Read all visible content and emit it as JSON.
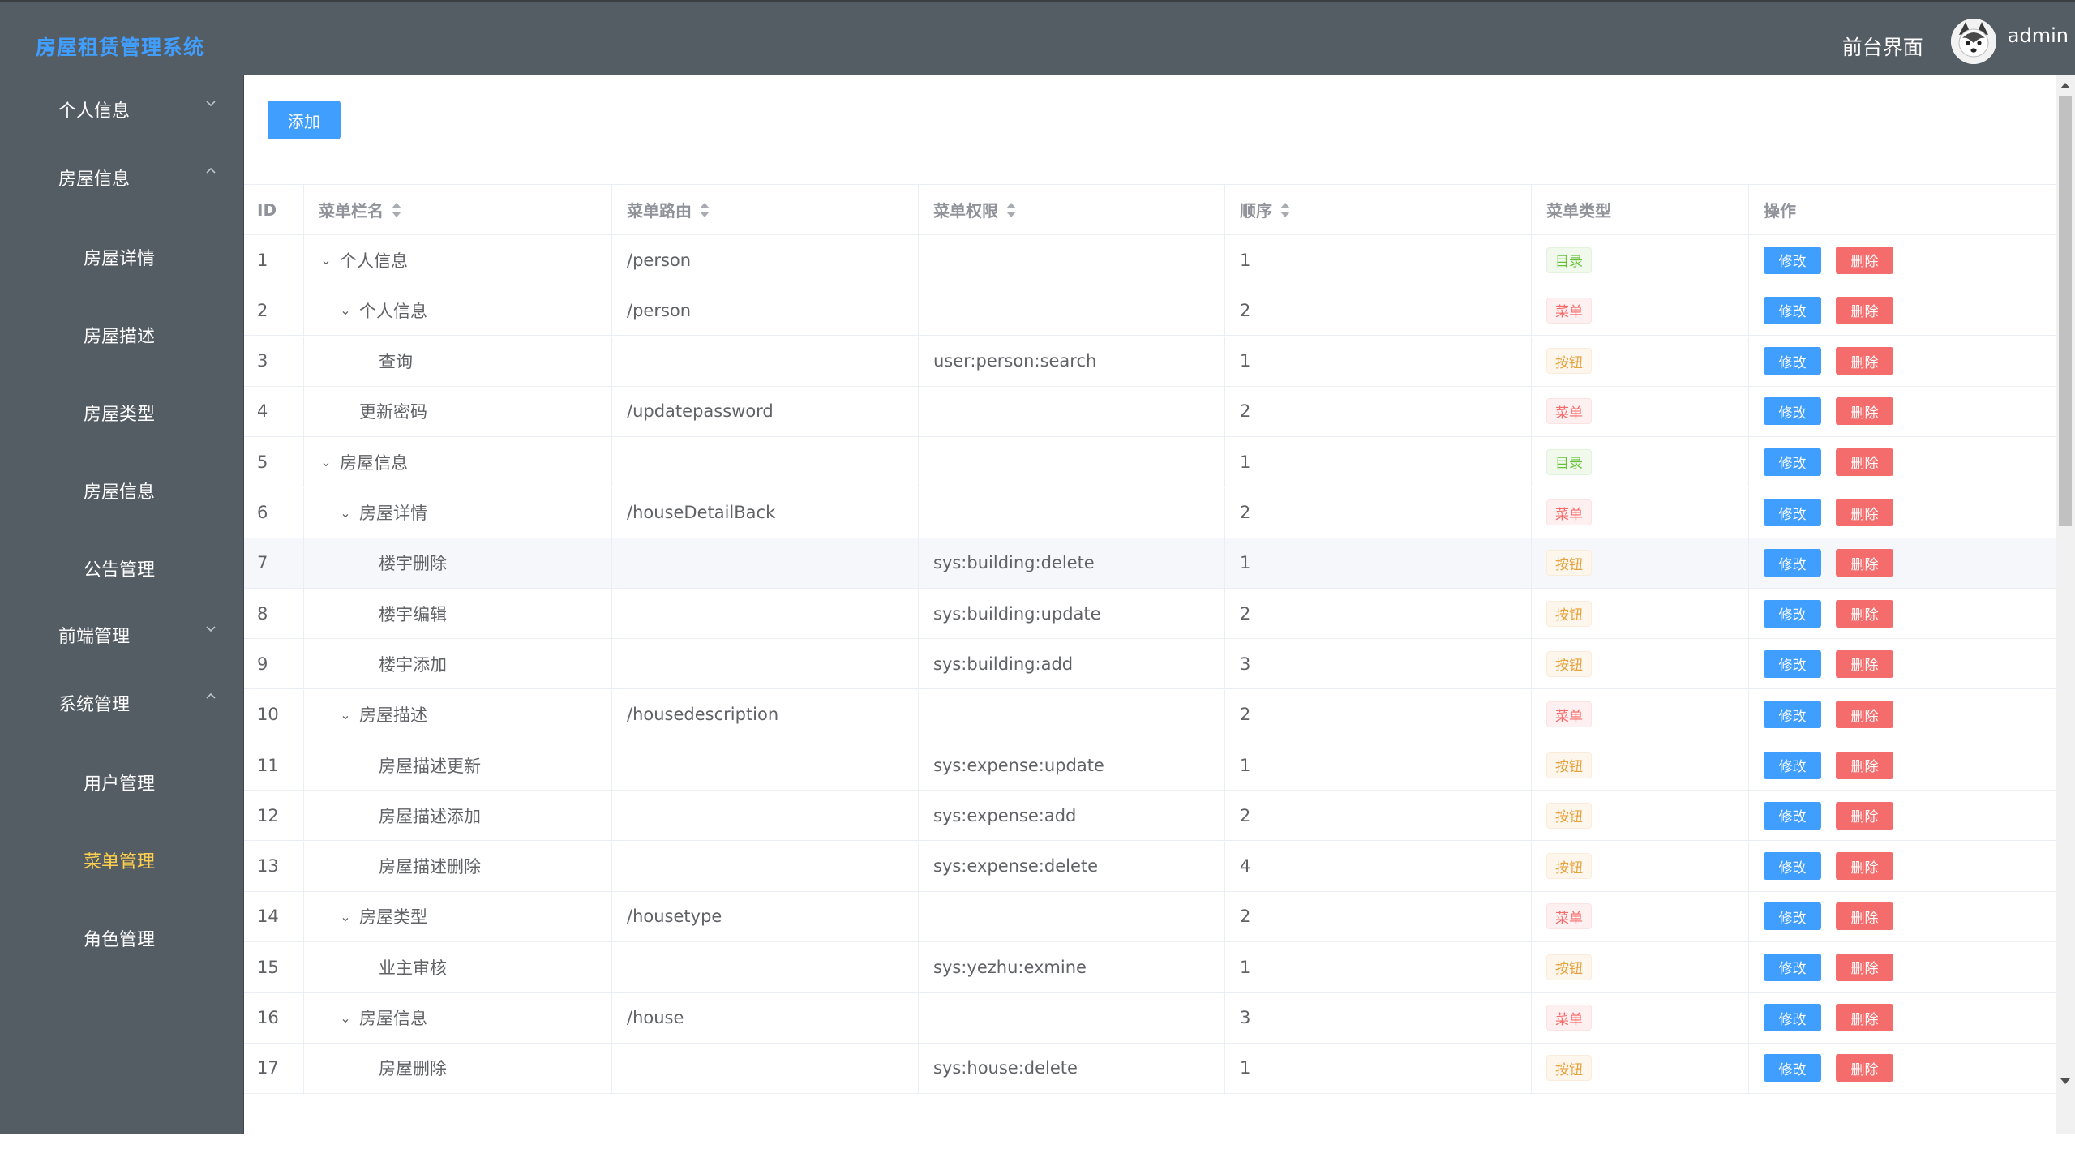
{
  "header": {
    "logo": "房屋租赁管理系统",
    "front_link": "前台界面",
    "username": "admin"
  },
  "sidebar": {
    "groups": [
      {
        "label": "个人信息",
        "expanded": false
      },
      {
        "label": "房屋信息",
        "expanded": true,
        "items": [
          "房屋详情",
          "房屋描述",
          "房屋类型",
          "房屋信息",
          "公告管理"
        ]
      },
      {
        "label": "前端管理",
        "expanded": false
      },
      {
        "label": "系统管理",
        "expanded": true,
        "items": [
          "用户管理",
          "菜单管理",
          "角色管理"
        ]
      }
    ],
    "active_item": "菜单管理"
  },
  "toolbar": {
    "add_label": "添加"
  },
  "table": {
    "headers": [
      "ID",
      "菜单栏名",
      "菜单路由",
      "菜单权限",
      "顺序",
      "菜单类型",
      "操作"
    ],
    "edit_label": "修改",
    "delete_label": "删除",
    "type_labels": {
      "dir": "目录",
      "menu": "菜单",
      "btn": "按钮"
    },
    "rows": [
      {
        "id": "1",
        "name": "个人信息",
        "level": 0,
        "expandable": true,
        "route": "/person",
        "perm": "",
        "order": "1",
        "type": "dir",
        "type_label": "目录"
      },
      {
        "id": "2",
        "name": "个人信息",
        "level": 1,
        "expandable": true,
        "route": "/person",
        "perm": "",
        "order": "2",
        "type": "menu",
        "type_label": "菜单"
      },
      {
        "id": "3",
        "name": "查询",
        "level": 2,
        "expandable": false,
        "route": "",
        "perm": "user:person:search",
        "order": "1",
        "type": "btn",
        "type_label": "按钮"
      },
      {
        "id": "4",
        "name": "更新密码",
        "level": 1,
        "expandable": false,
        "route": "/updatepassword",
        "perm": "",
        "order": "2",
        "type": "menu",
        "type_label": "菜单"
      },
      {
        "id": "5",
        "name": "房屋信息",
        "level": 0,
        "expandable": true,
        "route": "",
        "perm": "",
        "order": "1",
        "type": "dir",
        "type_label": "目录"
      },
      {
        "id": "6",
        "name": "房屋详情",
        "level": 1,
        "expandable": true,
        "route": "/houseDetailBack",
        "perm": "",
        "order": "2",
        "type": "menu",
        "type_label": "菜单"
      },
      {
        "id": "7",
        "name": "楼宇删除",
        "level": 2,
        "expandable": false,
        "route": "",
        "perm": "sys:building:delete",
        "order": "1",
        "type": "btn",
        "type_label": "按钮",
        "hover": true
      },
      {
        "id": "8",
        "name": "楼宇编辑",
        "level": 2,
        "expandable": false,
        "route": "",
        "perm": "sys:building:update",
        "order": "2",
        "type": "btn",
        "type_label": "按钮"
      },
      {
        "id": "9",
        "name": "楼宇添加",
        "level": 2,
        "expandable": false,
        "route": "",
        "perm": "sys:building:add",
        "order": "3",
        "type": "btn",
        "type_label": "按钮"
      },
      {
        "id": "10",
        "name": "房屋描述",
        "level": 1,
        "expandable": true,
        "route": "/housedescription",
        "perm": "",
        "order": "2",
        "type": "menu",
        "type_label": "菜单"
      },
      {
        "id": "11",
        "name": "房屋描述更新",
        "level": 2,
        "expandable": false,
        "route": "",
        "perm": "sys:expense:update",
        "order": "1",
        "type": "btn",
        "type_label": "按钮"
      },
      {
        "id": "12",
        "name": "房屋描述添加",
        "level": 2,
        "expandable": false,
        "route": "",
        "perm": "sys:expense:add",
        "order": "2",
        "type": "btn",
        "type_label": "按钮"
      },
      {
        "id": "13",
        "name": "房屋描述删除",
        "level": 2,
        "expandable": false,
        "route": "",
        "perm": "sys:expense:delete",
        "order": "4",
        "type": "btn",
        "type_label": "按钮"
      },
      {
        "id": "14",
        "name": "房屋类型",
        "level": 1,
        "expandable": true,
        "route": "/housetype",
        "perm": "",
        "order": "2",
        "type": "menu",
        "type_label": "菜单"
      },
      {
        "id": "15",
        "name": "业主审核",
        "level": 2,
        "expandable": false,
        "route": "",
        "perm": "sys:yezhu:exmine",
        "order": "1",
        "type": "btn",
        "type_label": "按钮"
      },
      {
        "id": "16",
        "name": "房屋信息",
        "level": 1,
        "expandable": true,
        "route": "/house",
        "perm": "",
        "order": "3",
        "type": "menu",
        "type_label": "菜单"
      },
      {
        "id": "17",
        "name": "房屋删除",
        "level": 2,
        "expandable": false,
        "route": "",
        "perm": "sys:house:delete",
        "order": "1",
        "type": "btn",
        "type_label": "按钮"
      }
    ]
  },
  "colors": {
    "header_bg": "#545c64",
    "sidebar_bg": "#545c64",
    "active_menu": "#ffd04b",
    "primary": "#409eff",
    "danger": "#f56c6c"
  }
}
